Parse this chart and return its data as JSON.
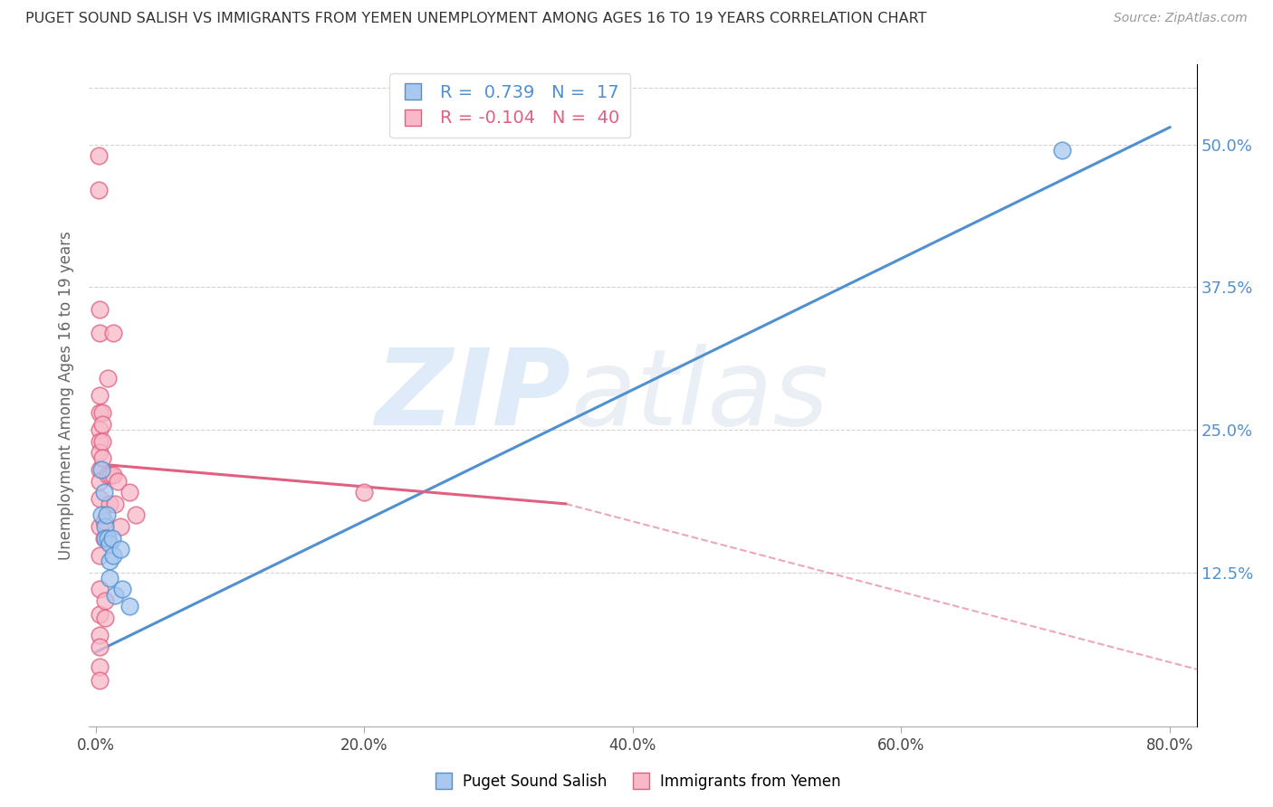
{
  "title": "PUGET SOUND SALISH VS IMMIGRANTS FROM YEMEN UNEMPLOYMENT AMONG AGES 16 TO 19 YEARS CORRELATION CHART",
  "source": "Source: ZipAtlas.com",
  "ylabel": "Unemployment Among Ages 16 to 19 years",
  "xtick_labels": [
    "0.0%",
    "20.0%",
    "40.0%",
    "60.0%",
    "80.0%"
  ],
  "xtick_values": [
    0.0,
    0.2,
    0.4,
    0.6,
    0.8
  ],
  "ytick_labels_right": [
    "50.0%",
    "37.5%",
    "25.0%",
    "12.5%"
  ],
  "ytick_values_right": [
    0.5,
    0.375,
    0.25,
    0.125
  ],
  "xlim": [
    -0.005,
    0.82
  ],
  "ylim": [
    -0.01,
    0.57
  ],
  "legend_labels": [
    "Puget Sound Salish",
    "Immigrants from Yemen"
  ],
  "r_blue": 0.739,
  "n_blue": 17,
  "r_pink": -0.104,
  "n_pink": 40,
  "blue_color": "#a8c8f0",
  "pink_color": "#f8b8c8",
  "blue_line_color": "#5090d0",
  "pink_line_color": "#e06080",
  "blue_scatter": [
    [
      0.004,
      0.215
    ],
    [
      0.004,
      0.175
    ],
    [
      0.006,
      0.195
    ],
    [
      0.007,
      0.165
    ],
    [
      0.007,
      0.155
    ],
    [
      0.008,
      0.175
    ],
    [
      0.009,
      0.155
    ],
    [
      0.01,
      0.15
    ],
    [
      0.01,
      0.135
    ],
    [
      0.01,
      0.12
    ],
    [
      0.012,
      0.155
    ],
    [
      0.013,
      0.14
    ],
    [
      0.014,
      0.105
    ],
    [
      0.018,
      0.145
    ],
    [
      0.02,
      0.11
    ],
    [
      0.025,
      0.095
    ],
    [
      0.72,
      0.495
    ]
  ],
  "pink_scatter": [
    [
      0.002,
      0.49
    ],
    [
      0.002,
      0.46
    ],
    [
      0.003,
      0.355
    ],
    [
      0.003,
      0.335
    ],
    [
      0.003,
      0.28
    ],
    [
      0.003,
      0.265
    ],
    [
      0.003,
      0.25
    ],
    [
      0.003,
      0.24
    ],
    [
      0.003,
      0.23
    ],
    [
      0.003,
      0.215
    ],
    [
      0.003,
      0.205
    ],
    [
      0.003,
      0.19
    ],
    [
      0.003,
      0.165
    ],
    [
      0.003,
      0.14
    ],
    [
      0.003,
      0.11
    ],
    [
      0.003,
      0.088
    ],
    [
      0.003,
      0.07
    ],
    [
      0.003,
      0.06
    ],
    [
      0.003,
      0.042
    ],
    [
      0.003,
      0.03
    ],
    [
      0.005,
      0.265
    ],
    [
      0.005,
      0.255
    ],
    [
      0.005,
      0.24
    ],
    [
      0.005,
      0.225
    ],
    [
      0.006,
      0.17
    ],
    [
      0.006,
      0.155
    ],
    [
      0.007,
      0.1
    ],
    [
      0.007,
      0.085
    ],
    [
      0.009,
      0.295
    ],
    [
      0.009,
      0.21
    ],
    [
      0.01,
      0.185
    ],
    [
      0.011,
      0.21
    ],
    [
      0.013,
      0.335
    ],
    [
      0.013,
      0.21
    ],
    [
      0.014,
      0.185
    ],
    [
      0.016,
      0.205
    ],
    [
      0.018,
      0.165
    ],
    [
      0.025,
      0.195
    ],
    [
      0.03,
      0.175
    ],
    [
      0.2,
      0.195
    ]
  ],
  "blue_line": [
    [
      0.0,
      0.055
    ],
    [
      0.8,
      0.515
    ]
  ],
  "pink_line_solid": [
    [
      0.0,
      0.22
    ],
    [
      0.35,
      0.185
    ]
  ],
  "pink_line_dash": [
    [
      0.35,
      0.185
    ],
    [
      0.82,
      0.04
    ]
  ],
  "watermark_zip": "ZIP",
  "watermark_atlas": "atlas",
  "background_color": "#ffffff",
  "grid_color": "#c8c8c8"
}
